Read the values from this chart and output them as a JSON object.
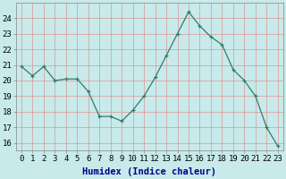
{
  "x": [
    0,
    1,
    2,
    3,
    4,
    5,
    6,
    7,
    8,
    9,
    10,
    11,
    12,
    13,
    14,
    15,
    16,
    17,
    18,
    19,
    20,
    21,
    22,
    23
  ],
  "y": [
    20.9,
    20.3,
    20.9,
    20.0,
    20.1,
    20.1,
    19.3,
    17.7,
    17.7,
    17.4,
    18.1,
    19.0,
    20.2,
    21.6,
    23.0,
    24.4,
    23.5,
    22.8,
    22.3,
    20.7,
    20.0,
    19.0,
    17.0,
    15.8
  ],
  "xlabel": "Humidex (Indice chaleur)",
  "ylim": [
    15.5,
    25.0
  ],
  "yticks": [
    16,
    17,
    18,
    19,
    20,
    21,
    22,
    23,
    24
  ],
  "xticks": [
    0,
    1,
    2,
    3,
    4,
    5,
    6,
    7,
    8,
    9,
    10,
    11,
    12,
    13,
    14,
    15,
    16,
    17,
    18,
    19,
    20,
    21,
    22,
    23
  ],
  "line_color": "#2e7d6e",
  "marker_color": "#2e7d6e",
  "bg_color": "#c8eaea",
  "plot_bg_color": "#c8eaea",
  "grid_color_major": "#e08080",
  "grid_color_minor": "#e8b0b0",
  "tick_label_fontsize": 6.5,
  "xlabel_fontsize": 7.5,
  "xlabel_color": "#00008b",
  "spine_color": "#888888"
}
